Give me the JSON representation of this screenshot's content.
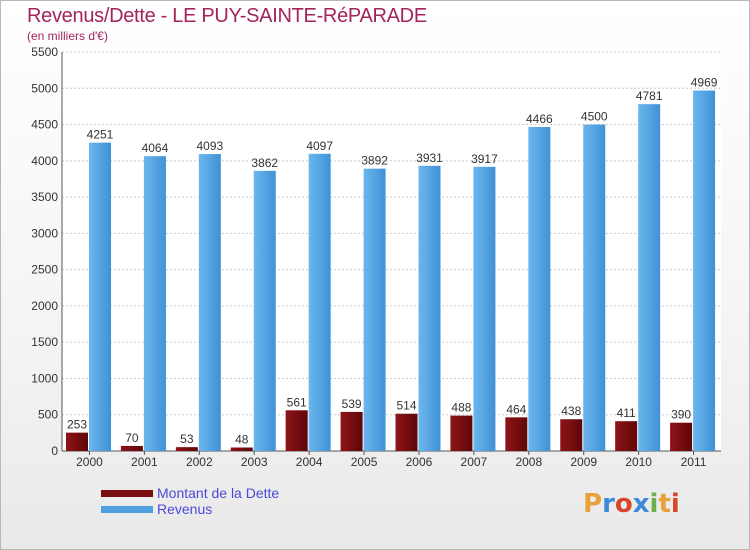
{
  "header": {
    "title": "Revenus/Dette - LE PUY-SAINTE-RéPARADE",
    "subtitle": "(en milliers d'€)"
  },
  "legend": {
    "items": [
      {
        "label": "Montant de la Dette",
        "color": "#7a0d10"
      },
      {
        "label": "Revenus",
        "color": "#4ea0e0"
      }
    ]
  },
  "logo": {
    "text": "Proxiti",
    "colors": [
      "#e8a23a",
      "#3d8ad8",
      "#d8462c",
      "#3d8ad8",
      "#6ab04c",
      "#e8a23a",
      "#d8462c"
    ]
  },
  "chart_data": {
    "type": "bar",
    "title": "Revenus/Dette - LE PUY-SAINTE-RéPARADE",
    "subtitle": "(en milliers d'€)",
    "categories": [
      "2000",
      "2001",
      "2002",
      "2003",
      "2004",
      "2005",
      "2006",
      "2007",
      "2008",
      "2009",
      "2010",
      "2011"
    ],
    "series": [
      {
        "name": "Montant de la Dette",
        "color": "#7a0d10",
        "values": [
          253,
          70,
          53,
          48,
          561,
          539,
          514,
          488,
          464,
          438,
          411,
          390
        ]
      },
      {
        "name": "Revenus",
        "color": "#4ea0e0",
        "values": [
          4251,
          4064,
          4093,
          3862,
          4097,
          3892,
          3931,
          3917,
          4466,
          4500,
          4781,
          4969
        ]
      }
    ],
    "ylim": [
      0,
      5500
    ],
    "yticks": [
      0,
      500,
      1000,
      1500,
      2000,
      2500,
      3000,
      3500,
      4000,
      4500,
      5000,
      5500
    ],
    "grid": true,
    "legend_position": "bottom-left"
  }
}
